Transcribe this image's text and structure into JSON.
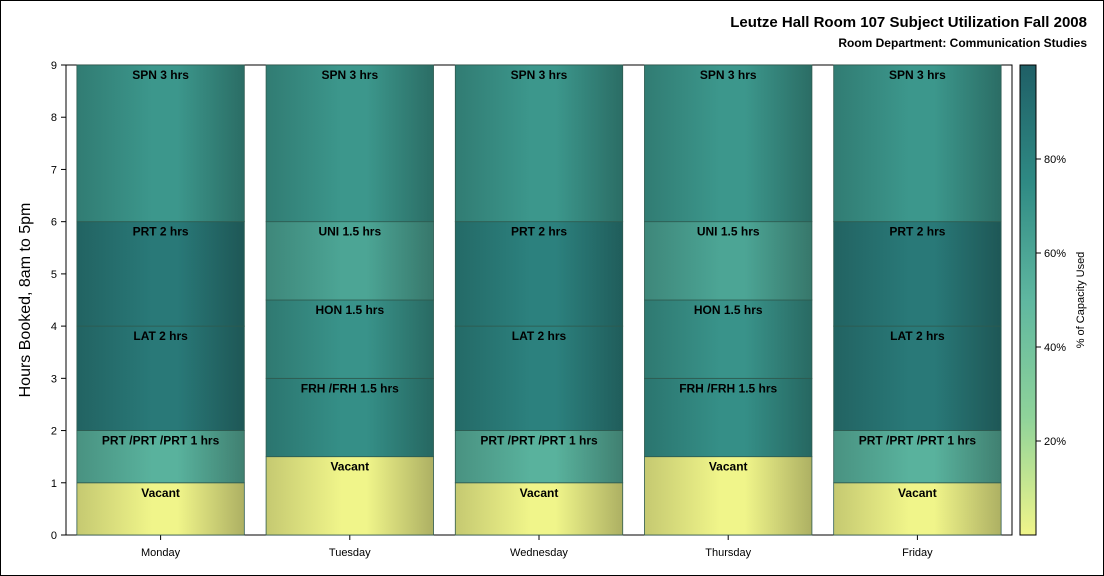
{
  "chart_data": {
    "type": "bar",
    "stacked": true,
    "title": "Leutze Hall Room 107 Subject Utilization Fall 2008",
    "subtitle": "Room Department:  Communication Studies",
    "ylabel": "Hours Booked, 8am to 5pm",
    "xlabel": "",
    "ylim": [
      0,
      9
    ],
    "yticks": [
      "0",
      "1",
      "2",
      "3",
      "4",
      "5",
      "6",
      "7",
      "8",
      "9"
    ],
    "categories": [
      "Monday",
      "Tuesday",
      "Wednesday",
      "Thursday",
      "Friday"
    ],
    "bars": [
      {
        "day": "Monday",
        "segments": [
          {
            "label": "Vacant",
            "hours": 1,
            "pct": 0
          },
          {
            "label": "PRT /PRT /PRT 1 hrs",
            "hours": 1,
            "pct": 53
          },
          {
            "label": "LAT 2 hrs",
            "hours": 2,
            "pct": 85
          },
          {
            "label": "PRT 2 hrs",
            "hours": 2,
            "pct": 85
          },
          {
            "label": "SPN 3 hrs",
            "hours": 3,
            "pct": 68
          }
        ]
      },
      {
        "day": "Tuesday",
        "segments": [
          {
            "label": "Vacant",
            "hours": 1.5,
            "pct": 0
          },
          {
            "label": "FRH /FRH 1.5 hrs",
            "hours": 1.5,
            "pct": 72
          },
          {
            "label": "HON 1.5 hrs",
            "hours": 1.5,
            "pct": 70
          },
          {
            "label": "UNI 1.5 hrs",
            "hours": 1.5,
            "pct": 60
          },
          {
            "label": "SPN 3 hrs",
            "hours": 3,
            "pct": 68
          }
        ]
      },
      {
        "day": "Wednesday",
        "segments": [
          {
            "label": "Vacant",
            "hours": 1,
            "pct": 0
          },
          {
            "label": "PRT /PRT /PRT 1 hrs",
            "hours": 1,
            "pct": 53
          },
          {
            "label": "LAT 2 hrs",
            "hours": 2,
            "pct": 80
          },
          {
            "label": "PRT 2 hrs",
            "hours": 2,
            "pct": 80
          },
          {
            "label": "SPN 3 hrs",
            "hours": 3,
            "pct": 68
          }
        ]
      },
      {
        "day": "Thursday",
        "segments": [
          {
            "label": "Vacant",
            "hours": 1.5,
            "pct": 0
          },
          {
            "label": "FRH /FRH 1.5 hrs",
            "hours": 1.5,
            "pct": 72
          },
          {
            "label": "HON 1.5 hrs",
            "hours": 1.5,
            "pct": 70
          },
          {
            "label": "UNI 1.5 hrs",
            "hours": 1.5,
            "pct": 60
          },
          {
            "label": "SPN 3 hrs",
            "hours": 3,
            "pct": 68
          }
        ]
      },
      {
        "day": "Friday",
        "segments": [
          {
            "label": "Vacant",
            "hours": 1,
            "pct": 0
          },
          {
            "label": "PRT /PRT /PRT 1 hrs",
            "hours": 1,
            "pct": 53
          },
          {
            "label": "LAT 2 hrs",
            "hours": 2,
            "pct": 85
          },
          {
            "label": "PRT 2 hrs",
            "hours": 2,
            "pct": 85
          },
          {
            "label": "SPN 3 hrs",
            "hours": 3,
            "pct": 68
          }
        ]
      }
    ],
    "colorbar": {
      "label": "% of Capacity Used",
      "range": [
        0,
        100
      ],
      "ticks": [
        20,
        40,
        60,
        80
      ],
      "tick_labels": [
        "20%",
        "40%",
        "60%",
        "80%"
      ],
      "colors": [
        "#f0f58a",
        "#8fd39a",
        "#5fb7a0",
        "#2f8a84",
        "#1f5f66"
      ]
    },
    "grid": false,
    "legend": "right (color scale)"
  }
}
